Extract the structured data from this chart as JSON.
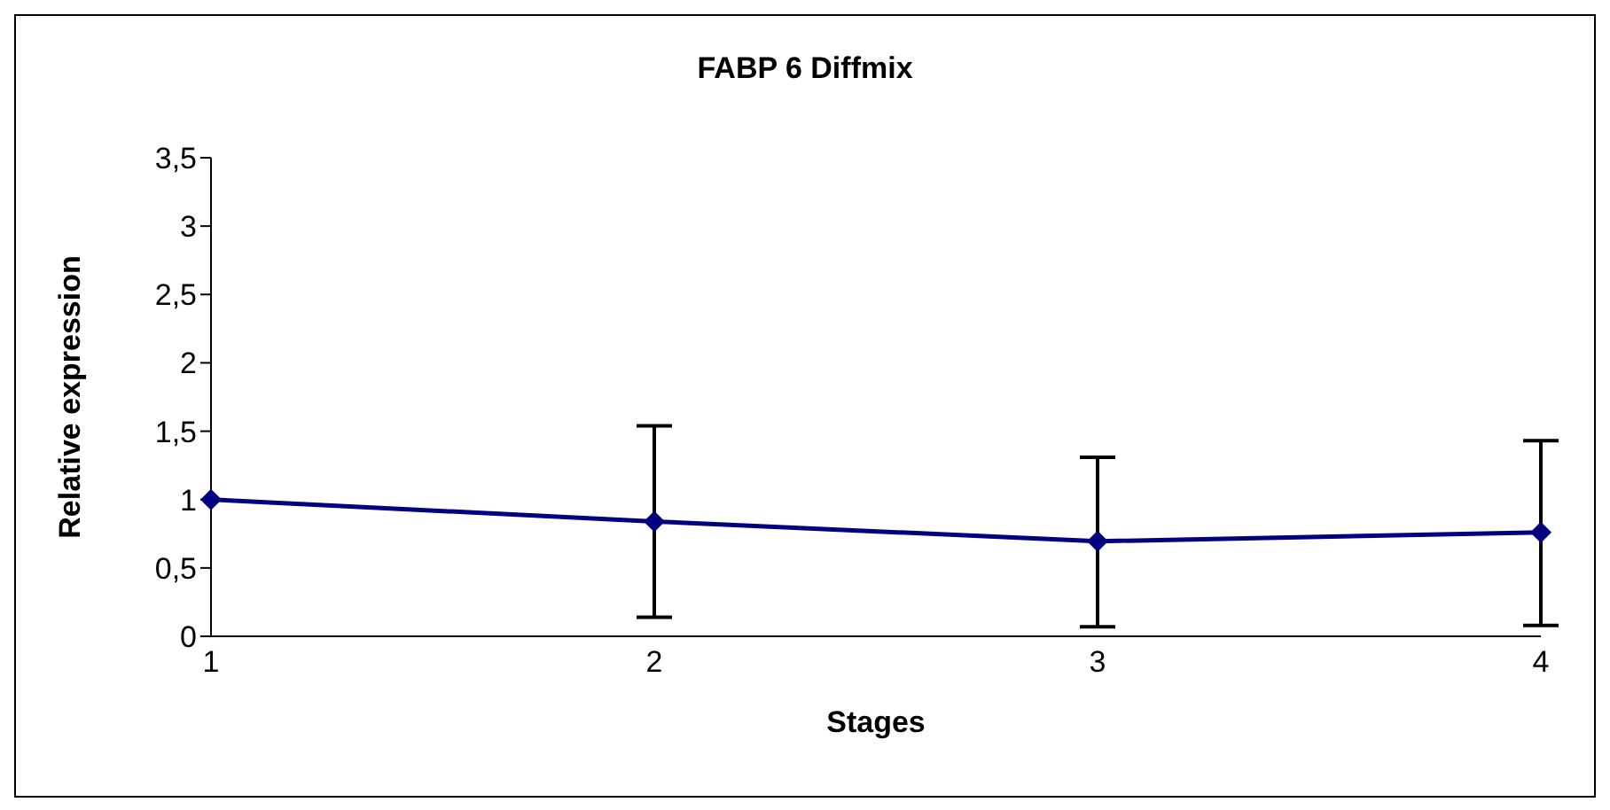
{
  "chart_data": {
    "type": "line",
    "title": "FABP 6 Diffmix",
    "xlabel": "Stages",
    "ylabel": "Relative expression",
    "categories": [
      "1",
      "2",
      "3",
      "4"
    ],
    "series": [
      {
        "color": "#000080",
        "values": [
          1,
          0.84,
          0.695,
          0.76
        ],
        "errors": [
          null,
          [
            0.14,
            1.54
          ],
          [
            0.07,
            1.31
          ],
          [
            0.08,
            1.43
          ]
        ]
      }
    ],
    "ylim": [
      0,
      3.5
    ],
    "yticks": [
      0,
      {
        "value": 0.5,
        "label": "0,5"
      },
      1,
      {
        "value": 1.5,
        "label": "1,5"
      },
      2,
      {
        "value": 2.5,
        "label": "2,5"
      },
      3,
      {
        "value": 3.5,
        "label": "3,5"
      }
    ],
    "marker": "diamond",
    "grid": false,
    "legend": false
  }
}
